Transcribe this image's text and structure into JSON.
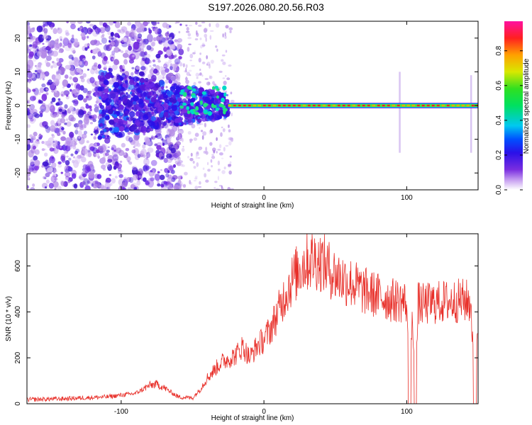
{
  "title": "S197.2026.080.20.56.R03",
  "colors": {
    "trace": "#e8302a",
    "axis": "#000000"
  },
  "chart_data": [
    {
      "type": "heatmap",
      "name": "spectrogram",
      "xlabel": "Height of straight line (km)",
      "ylabel": "Frequency (Hz)",
      "xlim": [
        -166,
        150
      ],
      "ylim": [
        -25,
        25
      ],
      "xticks": [
        -100,
        0,
        100
      ],
      "xtick_labels": [
        "-100",
        "0",
        "100"
      ],
      "yticks": [
        20,
        10,
        0,
        -10,
        -20
      ],
      "ytick_labels": [
        "20",
        "10",
        "0",
        "-10",
        "-20"
      ],
      "grid": false,
      "ridge": {
        "frequency_hz": 0,
        "x_start": -25,
        "x_end": 150
      },
      "colorbar": {
        "label": "Normalized spectral amplitude",
        "range": [
          0.0,
          0.97
        ],
        "ticks": [
          0.0,
          0.2,
          0.4,
          0.6,
          0.8
        ],
        "tick_labels": [
          "0.0",
          "0.2",
          "0.4",
          "0.6",
          "0.8"
        ]
      }
    },
    {
      "type": "line",
      "name": "snr",
      "xlabel": "Height of straight line (km)",
      "ylabel": "SNR (10 * v/v)",
      "xlim": [
        -166,
        150
      ],
      "ylim": [
        0,
        740
      ],
      "xticks": [
        -100,
        0,
        100
      ],
      "xtick_labels": [
        "-100",
        "0",
        "100"
      ],
      "yticks": [
        0,
        200,
        400,
        600
      ],
      "ytick_labels": [
        "0",
        "200",
        "400",
        "600"
      ],
      "grid": false,
      "series": [
        {
          "name": "SNR",
          "x": [
            -166,
            -140,
            -110,
            -90,
            -80,
            -75,
            -70,
            -60,
            -50,
            -45,
            -40,
            -30,
            -20,
            -15,
            -10,
            -5,
            0,
            5,
            10,
            15,
            20,
            25,
            30,
            35,
            40,
            45,
            50,
            60,
            70,
            80,
            90,
            95,
            100,
            102,
            104,
            106,
            108,
            110,
            120,
            130,
            140,
            145,
            148,
            150
          ],
          "y": [
            18,
            22,
            30,
            45,
            80,
            85,
            70,
            30,
            25,
            60,
            110,
            180,
            210,
            250,
            200,
            250,
            280,
            330,
            400,
            480,
            540,
            590,
            620,
            630,
            620,
            590,
            560,
            530,
            490,
            470,
            450,
            450,
            440,
            0,
            440,
            0,
            440,
            430,
            440,
            445,
            450,
            440,
            0,
            420
          ]
        }
      ]
    }
  ]
}
